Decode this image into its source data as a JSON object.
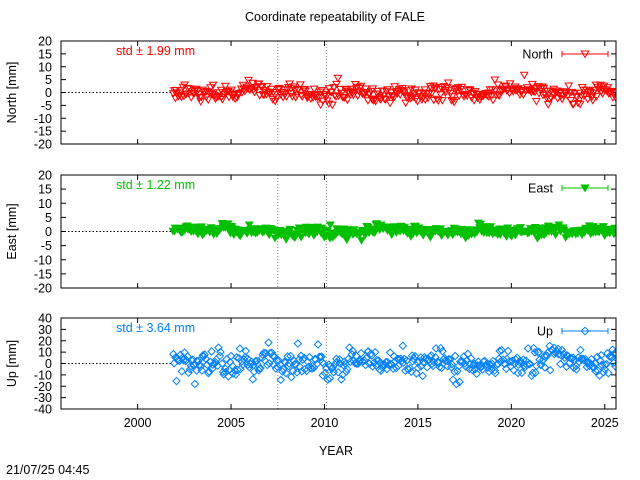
{
  "title": "Coordinate repeatability of FALE",
  "xlabel": "YEAR",
  "timestamp": "21/07/25 04:45",
  "chart_data": [
    {
      "type": "scatter",
      "key": "north",
      "ylabel": "North [mm]",
      "series_name": "North",
      "std_label": "std ± 1.99 mm",
      "color": "#ff0000",
      "marker": "triangle-down-open",
      "xlim": [
        1995.9,
        2025.6
      ],
      "ylim": [
        -20,
        20
      ],
      "yticks": [
        -20,
        -15,
        -10,
        -5,
        0,
        5,
        10,
        15,
        20
      ],
      "xticks": [
        2000,
        2005,
        2010,
        2015,
        2020,
        2025
      ],
      "vlines": [
        2007.5,
        2010.1
      ],
      "data_start": 2001.9,
      "data_end": 2025.6,
      "sigma": 1.99,
      "point_spread": [
        -9,
        8
      ]
    },
    {
      "type": "scatter",
      "key": "east",
      "ylabel": "East [mm]",
      "series_name": "East",
      "std_label": "std ± 1.22 mm",
      "color": "#00c000",
      "marker": "triangle-down-filled",
      "xlim": [
        1995.9,
        2025.6
      ],
      "ylim": [
        -20,
        20
      ],
      "yticks": [
        -20,
        -15,
        -10,
        -5,
        0,
        5,
        10,
        15,
        20
      ],
      "xticks": [
        2000,
        2005,
        2010,
        2015,
        2020,
        2025
      ],
      "vlines": [
        2007.5,
        2010.1
      ],
      "data_start": 2001.9,
      "data_end": 2025.6,
      "sigma": 1.22,
      "point_spread": [
        -9,
        6
      ]
    },
    {
      "type": "scatter",
      "key": "up",
      "ylabel": "Up [mm]",
      "series_name": "Up",
      "std_label": "std ± 3.64 mm",
      "color": "#0080ff",
      "marker": "diamond-open",
      "xlim": [
        1995.9,
        2025.6
      ],
      "ylim": [
        -40,
        40
      ],
      "yticks": [
        -40,
        -30,
        -20,
        -10,
        0,
        10,
        20,
        30,
        40
      ],
      "ytick_labels": [
        "-40",
        "-30",
        "-20",
        "-10",
        "0",
        "10",
        "20",
        "30",
        "40"
      ],
      "xticks": [
        2000,
        2005,
        2010,
        2015,
        2020,
        2025
      ],
      "vlines": [
        2007.5,
        2010.1
      ],
      "data_start": 2001.9,
      "data_end": 2025.6,
      "sigma": 3.64,
      "point_spread": [
        -18,
        20
      ]
    }
  ]
}
